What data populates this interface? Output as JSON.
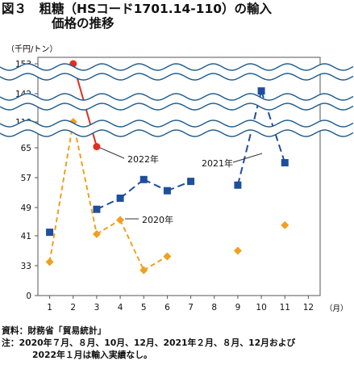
{
  "figure": {
    "title_line1": "図３　粗糖（HSコード1701.14-110）の輸入",
    "title_line2": "価格の推移",
    "unit_label": "（千円/トン）",
    "x_unit": "（月）",
    "source": "資料：財務省「貿易統計」",
    "note_line1": "注：2020年７月、８月、10月、12月、2021年２月、８月、12月および",
    "note_line2": "2022年１月は輸入実績なし。"
  },
  "chart_data": {
    "type": "line",
    "x_ticks": [
      1,
      2,
      3,
      4,
      5,
      6,
      7,
      8,
      9,
      10,
      11,
      12
    ],
    "y_ticks": [
      0,
      33,
      41,
      49,
      57,
      65,
      110,
      142,
      153
    ],
    "y_axis_breaks": 3,
    "grid": false,
    "series": [
      {
        "name": "2020年",
        "color": "#f0a020",
        "line_style": "dashed",
        "marker": "diamond",
        "points": [
          [
            1,
            34
          ],
          [
            2,
            110
          ],
          [
            3,
            41.5
          ],
          [
            4,
            45.5
          ],
          [
            5,
            28
          ],
          [
            6,
            35.5
          ],
          [
            9,
            37
          ],
          [
            11,
            44
          ]
        ],
        "connect": [
          [
            1,
            2
          ],
          [
            2,
            3
          ],
          [
            3,
            4
          ],
          [
            4,
            5
          ],
          [
            5,
            6
          ]
        ]
      },
      {
        "name": "2021年",
        "color": "#1f4e9c",
        "line_style": "long-dash",
        "marker": "square",
        "points": [
          [
            1,
            42
          ],
          [
            3,
            48.5
          ],
          [
            4,
            51.5
          ],
          [
            5,
            56.5
          ],
          [
            6,
            53.5
          ],
          [
            7,
            56
          ],
          [
            9,
            55
          ],
          [
            10,
            143
          ],
          [
            11,
            61
          ]
        ],
        "connect": [
          [
            3,
            4
          ],
          [
            4,
            5
          ],
          [
            5,
            6
          ],
          [
            6,
            7
          ],
          [
            9,
            10
          ],
          [
            10,
            11
          ]
        ]
      },
      {
        "name": "2022年",
        "color": "#e03020",
        "line_style": "solid",
        "marker": "circle",
        "points": [
          [
            2,
            153
          ],
          [
            3,
            67
          ]
        ],
        "connect": [
          [
            2,
            3
          ]
        ]
      }
    ]
  }
}
